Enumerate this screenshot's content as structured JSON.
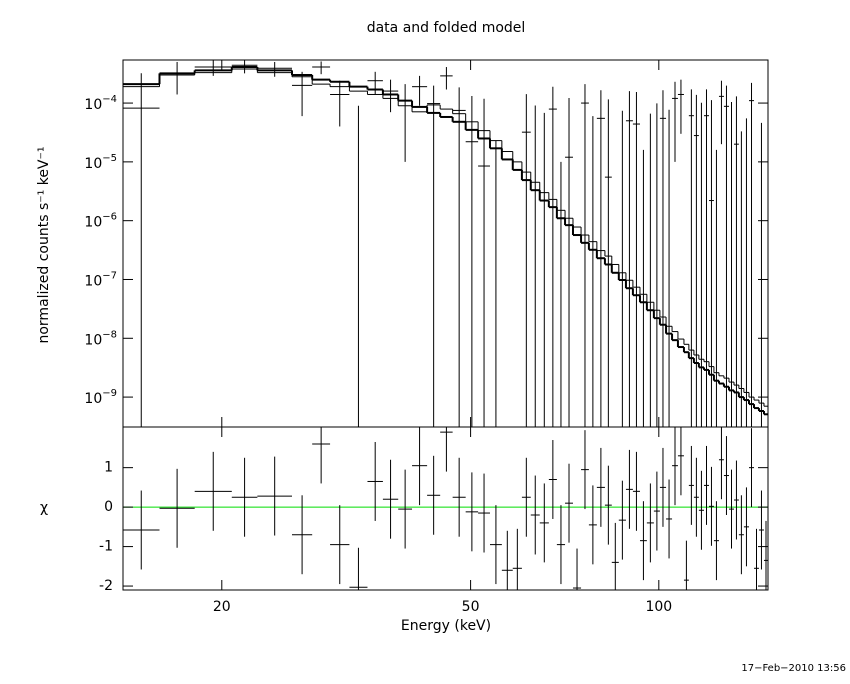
{
  "chart_data": {
    "type": "folded-spectrum",
    "title": "data and folded model",
    "xlabel": "Energy (keV)",
    "timestamp": "17−Feb−2010 13:56",
    "log_x": true,
    "xlim": [
      13.9,
      149.5
    ],
    "xticks": [
      20,
      50,
      100
    ],
    "bins": [
      13.9,
      15.9,
      18.1,
      20.75,
      22.8,
      25.9,
      27.9,
      29.8,
      32.0,
      34.2,
      36.2,
      38.3,
      40.3,
      42.6,
      44.7,
      46.8,
      49.1,
      51.4,
      53.7,
      56.1,
      58.4,
      60.4,
      62.4,
      64.5,
      66.7,
      68.7,
      70.8,
      72.9,
      75.1,
      77.3,
      79.6,
      82.0,
      84.1,
      86.3,
      88.6,
      90.9,
      93.3,
      95.7,
      98.2,
      100.4,
      102.7,
      105.0,
      107.3,
      109.7,
      111.7,
      113.8,
      115.9,
      118.1,
      120.3,
      122.5,
      124.8,
      127.1,
      129.5,
      131.9,
      134.3,
      136.8,
      139.4,
      142.0,
      144.6,
      147.3,
      149.5
    ],
    "upper": {
      "ylabel": "normalized counts s⁻¹ keV⁻¹",
      "log_y": true,
      "ylim": [
        3.1e-10,
        0.00054
      ],
      "yticks": [
        {
          "value": 1e-09,
          "label": "10−9"
        },
        {
          "value": 1e-08,
          "label": "10−8"
        },
        {
          "value": 1e-07,
          "label": "10−7"
        },
        {
          "value": 1e-06,
          "label": "10−6"
        },
        {
          "value": 1e-05,
          "label": "10−5"
        },
        {
          "value": 0.0001,
          "label": "10−4"
        }
      ],
      "data": {
        "color": "#000000",
        "values": [
          8.2e-05,
          0.00032,
          0.00041,
          0.00044,
          0.00039,
          0.0002,
          0.00041,
          0.00014,
          -1e-05,
          0.00024,
          0.00016,
          0.00011,
          0.00019,
          9.8e-05,
          0.00029,
          7.5e-05,
          2.2e-05,
          8.5e-06,
          -8.7e-05,
          -0.000165,
          -0.000163,
          3.2e-05,
          -1.9e-05,
          -4.2e-05,
          7.9e-05,
          -0.0001,
          1.2e-05,
          -0.00023,
          0.0001,
          -5e-05,
          5.5e-05,
          5.5e-06,
          -0.00015,
          -3.6e-05,
          5e-05,
          4.4e-05,
          -9.4e-05,
          -4.4e-05,
          -1.1e-05,
          5.5e-05,
          -3.3e-05,
          0.00012,
          0.00014,
          -0.0002,
          6.1e-05,
          2.8e-05,
          -8.8e-06,
          6.1e-05,
          2.2e-06,
          -9.4e-05,
          0.00013,
          8.8e-05,
          -5.5e-06,
          2e-05,
          -7.7e-05,
          -5.5e-05,
          0.00011,
          -0.00017,
          -6.4e-05,
          -0.00015
        ],
        "errors": [
          0.00024,
          0.00018,
          0.00012,
          0.00012,
          0.00011,
          0.00014,
          0.0001,
          0.0001,
          0.0001,
          0.0001,
          9e-05,
          0.0001,
          0.0001,
          0.0001,
          0.00012,
          0.00011,
          0.00011,
          0.00011,
          0.00011,
          0.00011,
          0.00011,
          0.00011,
          0.00011,
          0.00011,
          0.00011,
          0.00011,
          0.00011,
          0.00011,
          0.00011,
          0.00011,
          0.00011,
          0.00011,
          0.00011,
          0.00011,
          0.00011,
          0.00011,
          0.00011,
          0.00011,
          0.00011,
          0.00011,
          0.00011,
          0.00011,
          0.00011,
          0.00011,
          0.00011,
          0.00011,
          0.00011,
          0.00011,
          0.00011,
          0.00011,
          0.00011,
          0.00011,
          0.00011,
          0.00011,
          0.00011,
          0.00011,
          0.00011,
          0.00011,
          0.00011,
          0.00011
        ]
      },
      "models": [
        {
          "color": "#000000",
          "width": 2,
          "values": [
            0.00021,
            0.00032,
            0.00036,
            0.00041,
            0.00036,
            0.0003,
            0.00025,
            0.00023,
            0.00019,
            0.00017,
            0.00014,
            0.00011,
            8.6e-05,
            6.8e-05,
            5.8e-05,
            4.8e-05,
            3.5e-05,
            2.5e-05,
            1.7e-05,
            1.1e-05,
            7.3e-06,
            4.9e-06,
            3.3e-06,
            2.2e-06,
            1.7e-06,
            1.1e-06,
            8.4e-07,
            5.7e-07,
            4.2e-07,
            3.2e-07,
            2.3e-07,
            1.8e-07,
            1.3e-07,
            9.8e-08,
            7.1e-08,
            5.4e-08,
            4.1e-08,
            3e-08,
            2.2e-08,
            1.7e-08,
            1.2e-08,
            9.3e-09,
            7.1e-09,
            5.8e-09,
            4.6e-09,
            3.8e-09,
            3.2e-09,
            2.9e-09,
            2.4e-09,
            1.9e-09,
            1.7e-09,
            1.5e-09,
            1.3e-09,
            1.2e-09,
            1e-09,
            8.9e-10,
            7.6e-10,
            6.5e-10,
            5.8e-10,
            5.1e-10
          ]
        },
        {
          "color": "#000000",
          "width": 1,
          "values": [
            0.00019,
            0.0003,
            0.00033,
            0.00038,
            0.00033,
            0.00028,
            0.00021,
            0.00019,
            0.00016,
            0.00014,
            0.00012,
            9e-05,
            7.1e-05,
            9.3e-05,
            7.9e-05,
            6.6e-05,
            4.8e-05,
            3.4e-05,
            2.3e-05,
            1.5e-05,
            1e-05,
            6.7e-06,
            4.5e-06,
            3e-06,
            2.3e-06,
            1.5e-06,
            1.1e-06,
            7.8e-07,
            5.7e-07,
            4.4e-07,
            3.1e-07,
            2.5e-07,
            1.8e-07,
            1.3e-07,
            9.7e-08,
            7.4e-08,
            5.6e-08,
            4.1e-08,
            3e-08,
            2.3e-08,
            1.6e-08,
            1.3e-08,
            9.7e-09,
            7.9e-09,
            6.3e-09,
            5.2e-09,
            4.4e-09,
            4e-09,
            3.3e-09,
            2.6e-09,
            2.3e-09,
            2.1e-09,
            1.8e-09,
            1.6e-09,
            1.4e-09,
            1.2e-09,
            1e-09,
            8.9e-10,
            7.9e-10,
            7e-10
          ]
        }
      ]
    },
    "lower": {
      "ylabel": "χ",
      "ylim": [
        -2.1,
        2.03
      ],
      "yticks": [
        -2,
        -1,
        0,
        1
      ],
      "reference_line": 0,
      "reference_color": "#00dd00",
      "data": {
        "color": "#000000",
        "values": [
          -0.58,
          -0.03,
          0.4,
          0.25,
          0.28,
          -0.7,
          1.6,
          -0.95,
          -2.03,
          0.65,
          0.2,
          -0.05,
          1.05,
          0.3,
          1.9,
          0.25,
          -0.12,
          -0.15,
          -0.95,
          -1.6,
          -1.55,
          0.25,
          -0.2,
          -0.4,
          0.7,
          -0.95,
          0.1,
          -2.05,
          0.95,
          -0.45,
          0.5,
          0.05,
          -1.4,
          -0.33,
          0.45,
          0.4,
          -0.85,
          -0.4,
          -0.1,
          0.5,
          -0.3,
          1.05,
          1.3,
          -1.85,
          0.55,
          0.25,
          -0.08,
          0.55,
          0.02,
          -0.85,
          1.2,
          0.8,
          -0.05,
          0.18,
          -0.7,
          -0.5,
          1.0,
          -1.55,
          -0.58,
          -1.35
        ],
        "errors": [
          1,
          1,
          1,
          1,
          1,
          1,
          1,
          1,
          1,
          1,
          1,
          1,
          1,
          1,
          1,
          1,
          1,
          1,
          1,
          1,
          1,
          1,
          1,
          1,
          1,
          1,
          1,
          1,
          1,
          1,
          1,
          1,
          1,
          1,
          1,
          1,
          1,
          1,
          1,
          1,
          1,
          1,
          1,
          1,
          1,
          1,
          1,
          1,
          1,
          1,
          1,
          1,
          1,
          1,
          1,
          1,
          1,
          1,
          1,
          1
        ]
      }
    }
  }
}
